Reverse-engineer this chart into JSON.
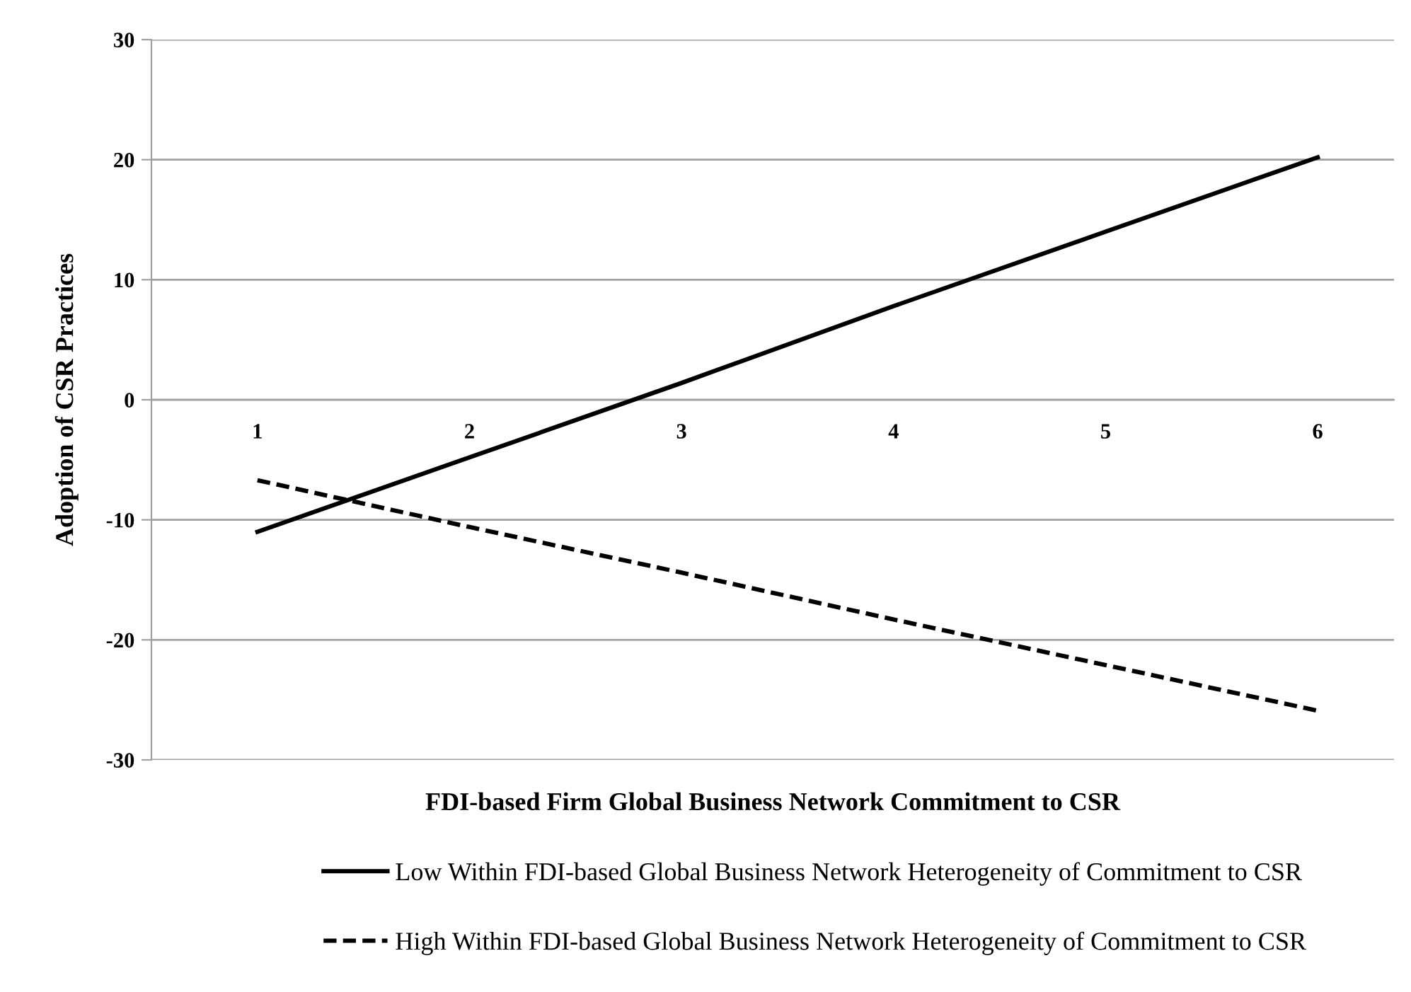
{
  "chart_data": {
    "type": "line",
    "xlabel": "FDI-based Firm Global Business Network Commitment to CSR",
    "ylabel": "Adoption of CSR Practices",
    "categories": [
      "1",
      "2",
      "3",
      "4",
      "5",
      "6"
    ],
    "series": [
      {
        "name": "Low Within FDI-based Global Business Network Heterogeneity of Commitment to CSR",
        "color": "#000000",
        "line_style": "solid",
        "values": [
          -11.0,
          -4.8,
          1.4,
          7.8,
          14.0,
          20.2
        ]
      },
      {
        "name": "High Within FDI-based Global Business Network Heterogeneity of Commitment to CSR",
        "color": "#000000",
        "line_style": "dashed",
        "values": [
          -6.7,
          -10.6,
          -14.4,
          -18.3,
          -22.1,
          -25.9
        ]
      }
    ],
    "ylim": [
      -30,
      30
    ],
    "yticks": [
      -30,
      -20,
      -10,
      0,
      10,
      20,
      30
    ],
    "grid": "y",
    "legend": "bottom",
    "marker": "none"
  }
}
